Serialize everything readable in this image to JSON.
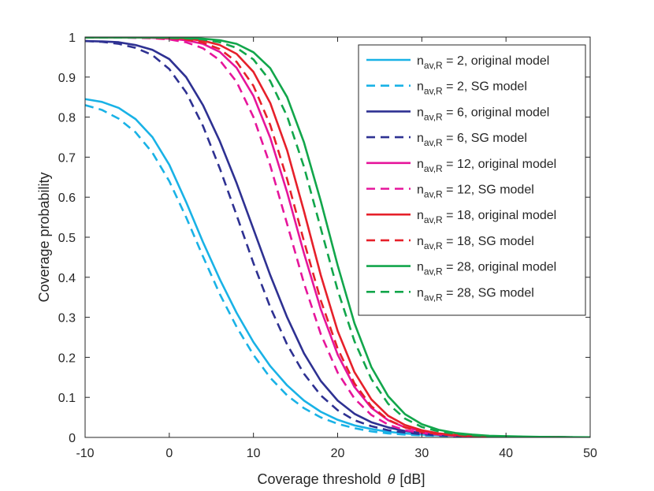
{
  "chart_data": {
    "type": "line",
    "title": "",
    "xlabel_prefix": "Coverage threshold",
    "xlabel_symbol": "θ",
    "xlabel_unit": "[dB]",
    "ylabel": "Coverage probability",
    "xlim": [
      -10,
      50
    ],
    "ylim": [
      0,
      1
    ],
    "xticks": [
      -10,
      0,
      10,
      20,
      30,
      40,
      50
    ],
    "yticks": [
      0,
      0.1,
      0.2,
      0.3,
      0.4,
      0.5,
      0.6,
      0.7,
      0.8,
      0.9,
      1
    ],
    "grid": false,
    "legend_position": "top-right",
    "x": [
      -10,
      -8,
      -6,
      -4,
      -2,
      0,
      2,
      4,
      6,
      8,
      10,
      12,
      14,
      16,
      18,
      20,
      22,
      24,
      26,
      28,
      30,
      32,
      34,
      36,
      38,
      40,
      42,
      44,
      46,
      48,
      50
    ],
    "series": [
      {
        "name_sub": "av,R",
        "n_value": "2",
        "model": "original model",
        "color": "#19b2e6",
        "style": "solid",
        "values": [
          0.845,
          0.838,
          0.823,
          0.795,
          0.75,
          0.681,
          0.588,
          0.488,
          0.395,
          0.311,
          0.238,
          0.178,
          0.13,
          0.092,
          0.064,
          0.044,
          0.03,
          0.021,
          0.014,
          0.01,
          0.007,
          0.005,
          0.004,
          0.003,
          0.002,
          0.0015,
          0.001,
          0.0008,
          0.0006,
          0.0004,
          0.0003
        ]
      },
      {
        "name_sub": "av,R",
        "n_value": "2",
        "model": "SG model",
        "color": "#19b2e6",
        "style": "dashed",
        "values": [
          0.83,
          0.818,
          0.796,
          0.762,
          0.711,
          0.64,
          0.55,
          0.452,
          0.358,
          0.276,
          0.206,
          0.149,
          0.105,
          0.073,
          0.05,
          0.034,
          0.023,
          0.015,
          0.01,
          0.007,
          0.005,
          0.004,
          0.003,
          0.002,
          0.0015,
          0.001,
          0.0008,
          0.0006,
          0.0004,
          0.0003,
          0.0002
        ]
      },
      {
        "name_sub": "av,R",
        "n_value": "6",
        "model": "original model",
        "color": "#2e3192",
        "style": "solid",
        "values": [
          0.99,
          0.989,
          0.987,
          0.98,
          0.968,
          0.945,
          0.9,
          0.83,
          0.74,
          0.635,
          0.52,
          0.405,
          0.3,
          0.21,
          0.141,
          0.092,
          0.059,
          0.038,
          0.025,
          0.016,
          0.011,
          0.007,
          0.005,
          0.004,
          0.003,
          0.002,
          0.0015,
          0.001,
          0.0008,
          0.0005,
          0.0003
        ]
      },
      {
        "name_sub": "av,R",
        "n_value": "6",
        "model": "SG model",
        "color": "#2e3192",
        "style": "dashed",
        "values": [
          0.99,
          0.988,
          0.983,
          0.973,
          0.955,
          0.92,
          0.862,
          0.778,
          0.672,
          0.555,
          0.435,
          0.325,
          0.232,
          0.159,
          0.105,
          0.068,
          0.043,
          0.028,
          0.018,
          0.012,
          0.008,
          0.005,
          0.004,
          0.003,
          0.002,
          0.0015,
          0.001,
          0.0008,
          0.0006,
          0.0004,
          0.0003
        ]
      },
      {
        "name_sub": "av,R",
        "n_value": "12",
        "model": "original model",
        "color": "#e6159b",
        "style": "solid",
        "values": [
          0.999,
          0.999,
          0.999,
          0.999,
          0.998,
          0.996,
          0.992,
          0.983,
          0.963,
          0.923,
          0.853,
          0.748,
          0.612,
          0.46,
          0.32,
          0.207,
          0.126,
          0.074,
          0.043,
          0.025,
          0.015,
          0.009,
          0.006,
          0.004,
          0.003,
          0.002,
          0.0015,
          0.001,
          0.0008,
          0.0005,
          0.0003
        ]
      },
      {
        "name_sub": "av,R",
        "n_value": "12",
        "model": "SG model",
        "color": "#e6159b",
        "style": "dashed",
        "values": [
          0.999,
          0.999,
          0.999,
          0.998,
          0.997,
          0.994,
          0.987,
          0.972,
          0.942,
          0.888,
          0.8,
          0.679,
          0.533,
          0.385,
          0.258,
          0.162,
          0.097,
          0.056,
          0.032,
          0.018,
          0.011,
          0.007,
          0.004,
          0.003,
          0.002,
          0.0015,
          0.001,
          0.0008,
          0.0005,
          0.0003,
          0.0002
        ]
      },
      {
        "name_sub": "av,R",
        "n_value": "18",
        "model": "original model",
        "color": "#e6202a",
        "style": "solid",
        "values": [
          0.999,
          0.999,
          0.999,
          0.999,
          0.999,
          0.998,
          0.996,
          0.991,
          0.98,
          0.958,
          0.913,
          0.835,
          0.717,
          0.565,
          0.405,
          0.266,
          0.163,
          0.095,
          0.054,
          0.031,
          0.018,
          0.01,
          0.006,
          0.004,
          0.003,
          0.002,
          0.0015,
          0.001,
          0.0008,
          0.0005,
          0.0003
        ]
      },
      {
        "name_sub": "av,R",
        "n_value": "18",
        "model": "SG model",
        "color": "#e6202a",
        "style": "dashed",
        "values": [
          0.999,
          0.999,
          0.999,
          0.999,
          0.998,
          0.997,
          0.994,
          0.986,
          0.97,
          0.938,
          0.878,
          0.78,
          0.645,
          0.49,
          0.342,
          0.222,
          0.135,
          0.078,
          0.044,
          0.025,
          0.014,
          0.008,
          0.005,
          0.003,
          0.002,
          0.0015,
          0.001,
          0.0008,
          0.0005,
          0.0003,
          0.0002
        ]
      },
      {
        "name_sub": "av,R",
        "n_value": "28",
        "model": "original model",
        "color": "#12a64b",
        "style": "solid",
        "values": [
          0.999,
          0.999,
          0.999,
          0.999,
          0.999,
          0.999,
          0.998,
          0.996,
          0.992,
          0.983,
          0.962,
          0.922,
          0.85,
          0.737,
          0.59,
          0.43,
          0.285,
          0.176,
          0.103,
          0.058,
          0.033,
          0.019,
          0.011,
          0.007,
          0.004,
          0.003,
          0.002,
          0.0015,
          0.001,
          0.0006,
          0.0004
        ]
      },
      {
        "name_sub": "av,R",
        "n_value": "28",
        "model": "SG model",
        "color": "#12a64b",
        "style": "dashed",
        "values": [
          0.999,
          0.999,
          0.999,
          0.999,
          0.999,
          0.998,
          0.997,
          0.994,
          0.987,
          0.973,
          0.944,
          0.89,
          0.802,
          0.676,
          0.522,
          0.368,
          0.24,
          0.146,
          0.084,
          0.047,
          0.026,
          0.015,
          0.009,
          0.005,
          0.003,
          0.002,
          0.0015,
          0.001,
          0.0008,
          0.0005,
          0.0003
        ]
      }
    ]
  }
}
